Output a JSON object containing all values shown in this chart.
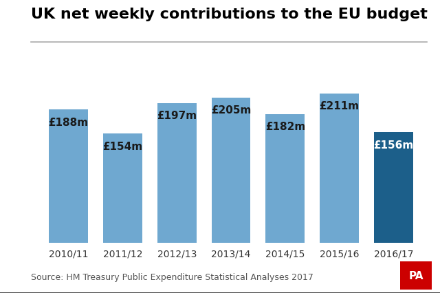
{
  "title": "UK net weekly contributions to the EU budget",
  "categories": [
    "2010/11",
    "2011/12",
    "2012/13",
    "2013/14",
    "2014/15",
    "2015/16",
    "2016/17"
  ],
  "values": [
    188,
    154,
    197,
    205,
    182,
    211,
    156
  ],
  "labels": [
    "£188m",
    "£154m",
    "£197m",
    "£205m",
    "£182m",
    "£211m",
    "£156m"
  ],
  "bar_colors": [
    "#6fa8d0",
    "#6fa8d0",
    "#6fa8d0",
    "#6fa8d0",
    "#6fa8d0",
    "#6fa8d0",
    "#1c5f8a"
  ],
  "label_colors": [
    "#1a1a1a",
    "#1a1a1a",
    "#1a1a1a",
    "#1a1a1a",
    "#1a1a1a",
    "#1a1a1a",
    "#ffffff"
  ],
  "source_text": "Source: HM Treasury Public Expenditure Statistical Analyses 2017",
  "pa_label": "PA",
  "pa_bg_color": "#cc0000",
  "pa_text_color": "#ffffff",
  "background_color": "#ffffff",
  "ylim": [
    0,
    240
  ],
  "title_fontsize": 16,
  "label_fontsize": 11,
  "tick_fontsize": 10,
  "source_fontsize": 9
}
